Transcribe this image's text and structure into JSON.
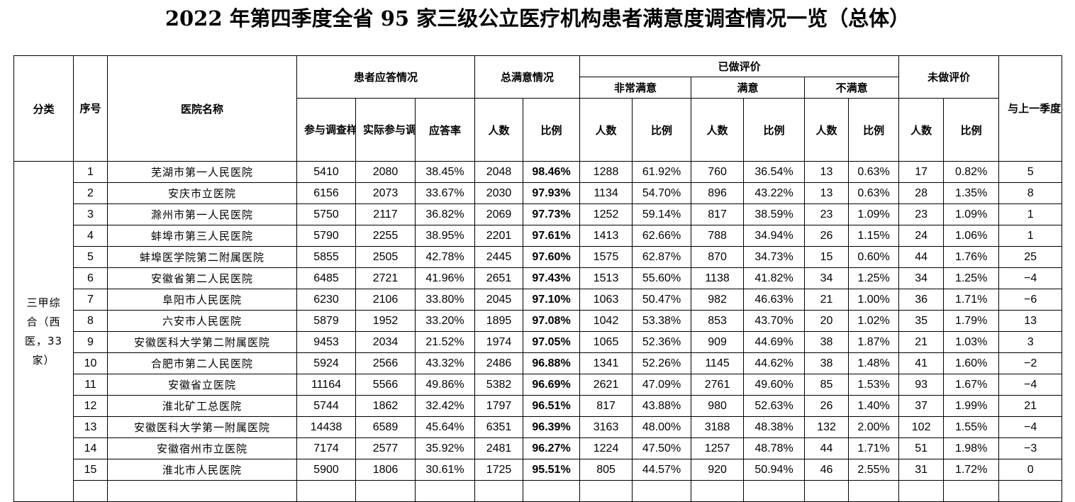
{
  "title": "2022 年第四季度全省 95 家三级公立医疗机构患者满意度调查情况一览（总体）",
  "headers": {
    "category": "分类",
    "seq": "序号",
    "hospital": "医院名称",
    "response_group": "患者应答情况",
    "sample": "参与调查样本人数",
    "actual": "实际参与调查人数",
    "rate": "应答率",
    "total_group": "总满意情况",
    "people": "人数",
    "ratio": "比例",
    "evaluated_group": "已做评价",
    "very_satisfied": "非常满意",
    "satisfied": "满意",
    "unsatisfied": "不满意",
    "not_evaluated": "未做评价",
    "rank_change": "与上一季度对比排名变化情况"
  },
  "category_label": "三甲综合（西医，33家）",
  "rows": [
    {
      "seq": "1",
      "name": "芜湖市第一人民医院",
      "sample": "5410",
      "actual": "2080",
      "rate": "38.45%",
      "total_n": "2048",
      "total_pct": "98.46%",
      "vs_n": "1288",
      "vs_pct": "61.92%",
      "s_n": "760",
      "s_pct": "36.54%",
      "u_n": "13",
      "u_pct": "0.63%",
      "ne_n": "17",
      "ne_pct": "0.82%",
      "change": "5"
    },
    {
      "seq": "2",
      "name": "安庆市立医院",
      "sample": "6156",
      "actual": "2073",
      "rate": "33.67%",
      "total_n": "2030",
      "total_pct": "97.93%",
      "vs_n": "1134",
      "vs_pct": "54.70%",
      "s_n": "896",
      "s_pct": "43.22%",
      "u_n": "13",
      "u_pct": "0.63%",
      "ne_n": "28",
      "ne_pct": "1.35%",
      "change": "8"
    },
    {
      "seq": "3",
      "name": "滁州市第一人民医院",
      "sample": "5750",
      "actual": "2117",
      "rate": "36.82%",
      "total_n": "2069",
      "total_pct": "97.73%",
      "vs_n": "1252",
      "vs_pct": "59.14%",
      "s_n": "817",
      "s_pct": "38.59%",
      "u_n": "23",
      "u_pct": "1.09%",
      "ne_n": "23",
      "ne_pct": "1.09%",
      "change": "1"
    },
    {
      "seq": "4",
      "name": "蚌埠市第三人民医院",
      "sample": "5790",
      "actual": "2255",
      "rate": "38.95%",
      "total_n": "2201",
      "total_pct": "97.61%",
      "vs_n": "1413",
      "vs_pct": "62.66%",
      "s_n": "788",
      "s_pct": "34.94%",
      "u_n": "26",
      "u_pct": "1.15%",
      "ne_n": "24",
      "ne_pct": "1.06%",
      "change": "1"
    },
    {
      "seq": "5",
      "name": "蚌埠医学院第二附属医院",
      "sample": "5855",
      "actual": "2505",
      "rate": "42.78%",
      "total_n": "2445",
      "total_pct": "97.60%",
      "vs_n": "1575",
      "vs_pct": "62.87%",
      "s_n": "870",
      "s_pct": "34.73%",
      "u_n": "15",
      "u_pct": "0.60%",
      "ne_n": "44",
      "ne_pct": "1.76%",
      "change": "25"
    },
    {
      "seq": "6",
      "name": "安徽省第二人民医院",
      "sample": "6485",
      "actual": "2721",
      "rate": "41.96%",
      "total_n": "2651",
      "total_pct": "97.43%",
      "vs_n": "1513",
      "vs_pct": "55.60%",
      "s_n": "1138",
      "s_pct": "41.82%",
      "u_n": "34",
      "u_pct": "1.25%",
      "ne_n": "34",
      "ne_pct": "1.25%",
      "change": "−4"
    },
    {
      "seq": "7",
      "name": "阜阳市人民医院",
      "sample": "6230",
      "actual": "2106",
      "rate": "33.80%",
      "total_n": "2045",
      "total_pct": "97.10%",
      "vs_n": "1063",
      "vs_pct": "50.47%",
      "s_n": "982",
      "s_pct": "46.63%",
      "u_n": "21",
      "u_pct": "1.00%",
      "ne_n": "36",
      "ne_pct": "1.71%",
      "change": "−6"
    },
    {
      "seq": "8",
      "name": "六安市人民医院",
      "sample": "5879",
      "actual": "1952",
      "rate": "33.20%",
      "total_n": "1895",
      "total_pct": "97.08%",
      "vs_n": "1042",
      "vs_pct": "53.38%",
      "s_n": "853",
      "s_pct": "43.70%",
      "u_n": "20",
      "u_pct": "1.02%",
      "ne_n": "35",
      "ne_pct": "1.79%",
      "change": "13"
    },
    {
      "seq": "9",
      "name": "安徽医科大学第二附属医院",
      "sample": "9453",
      "actual": "2034",
      "rate": "21.52%",
      "total_n": "1974",
      "total_pct": "97.05%",
      "vs_n": "1065",
      "vs_pct": "52.36%",
      "s_n": "909",
      "s_pct": "44.69%",
      "u_n": "38",
      "u_pct": "1.87%",
      "ne_n": "21",
      "ne_pct": "1.03%",
      "change": "3"
    },
    {
      "seq": "10",
      "name": "合肥市第二人民医院",
      "sample": "5924",
      "actual": "2566",
      "rate": "43.32%",
      "total_n": "2486",
      "total_pct": "96.88%",
      "vs_n": "1341",
      "vs_pct": "52.26%",
      "s_n": "1145",
      "s_pct": "44.62%",
      "u_n": "38",
      "u_pct": "1.48%",
      "ne_n": "41",
      "ne_pct": "1.60%",
      "change": "−2"
    },
    {
      "seq": "11",
      "name": "安徽省立医院",
      "sample": "11164",
      "actual": "5566",
      "rate": "49.86%",
      "total_n": "5382",
      "total_pct": "96.69%",
      "vs_n": "2621",
      "vs_pct": "47.09%",
      "s_n": "2761",
      "s_pct": "49.60%",
      "u_n": "85",
      "u_pct": "1.53%",
      "ne_n": "93",
      "ne_pct": "1.67%",
      "change": "−4"
    },
    {
      "seq": "12",
      "name": "淮北矿工总医院",
      "sample": "5744",
      "actual": "1862",
      "rate": "32.42%",
      "total_n": "1797",
      "total_pct": "96.51%",
      "vs_n": "817",
      "vs_pct": "43.88%",
      "s_n": "980",
      "s_pct": "52.63%",
      "u_n": "26",
      "u_pct": "1.40%",
      "ne_n": "37",
      "ne_pct": "1.99%",
      "change": "21"
    },
    {
      "seq": "13",
      "name": "安徽医科大学第一附属医院",
      "sample": "14438",
      "actual": "6589",
      "rate": "45.64%",
      "total_n": "6351",
      "total_pct": "96.39%",
      "vs_n": "3163",
      "vs_pct": "48.00%",
      "s_n": "3188",
      "s_pct": "48.38%",
      "u_n": "132",
      "u_pct": "2.00%",
      "ne_n": "102",
      "ne_pct": "1.55%",
      "change": "−4"
    },
    {
      "seq": "14",
      "name": "安徽宿州市立医院",
      "sample": "7174",
      "actual": "2577",
      "rate": "35.92%",
      "total_n": "2481",
      "total_pct": "96.27%",
      "vs_n": "1224",
      "vs_pct": "47.50%",
      "s_n": "1257",
      "s_pct": "48.78%",
      "u_n": "44",
      "u_pct": "1.71%",
      "ne_n": "51",
      "ne_pct": "1.98%",
      "change": "−3"
    },
    {
      "seq": "15",
      "name": "淮北市人民医院",
      "sample": "5900",
      "actual": "1806",
      "rate": "30.61%",
      "total_n": "1725",
      "total_pct": "95.51%",
      "vs_n": "805",
      "vs_pct": "44.57%",
      "s_n": "920",
      "s_pct": "50.94%",
      "u_n": "46",
      "u_pct": "2.55%",
      "ne_n": "31",
      "ne_pct": "1.72%",
      "change": "0"
    }
  ]
}
